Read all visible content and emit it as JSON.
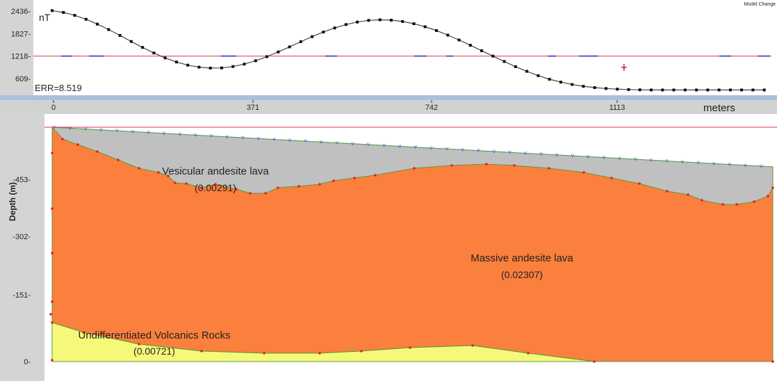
{
  "corner_label": "Model Change",
  "profile": {
    "unit": "nT",
    "error_label": "ERR=8.519",
    "yticks": [
      "2436-",
      "1827-",
      "1218-",
      "609-"
    ],
    "ytick_values": [
      2436,
      1827,
      1218,
      609
    ],
    "baseline_value": 1218
  },
  "distance_axis": {
    "unit": "meters",
    "ticks": [
      "0",
      "371",
      "742",
      "1113"
    ],
    "tick_values": [
      0,
      371,
      742,
      1113
    ]
  },
  "section": {
    "ylabel": "Depth (m)",
    "yticks": [
      "-453-",
      "-302-",
      "-151-",
      "0-"
    ],
    "ytick_values": [
      453,
      302,
      151,
      0
    ]
  },
  "layers": [
    {
      "name": "Vesicular andesite lava",
      "value": "(0.00291)",
      "color": "#c0c0c0"
    },
    {
      "name": "Massive andesite lava",
      "value": "(0.02307)",
      "color": "#fb7f3d"
    },
    {
      "name": "Undifferentiated  Volcanics Rocks",
      "value": "(0.00721)",
      "color": "#f5f97a"
    }
  ],
  "chart_data": {
    "type": "line",
    "title": "",
    "xlabel": "meters",
    "ylabel": "nT",
    "xlim": [
      0,
      1400
    ],
    "ylim": [
      300,
      2500
    ],
    "series": [
      {
        "x": [
          0,
          22,
          44,
          66,
          88,
          110,
          132,
          154,
          176,
          198,
          220,
          242,
          264,
          286,
          308,
          330,
          352,
          374,
          396,
          418,
          440,
          462,
          484,
          506,
          528,
          550,
          572,
          594,
          616,
          638,
          660,
          682,
          704,
          726,
          748,
          770,
          792,
          814,
          836,
          858,
          880,
          902,
          924,
          946,
          968,
          990,
          1012,
          1034,
          1056,
          1078,
          1100,
          1122,
          1144,
          1166,
          1188,
          1210,
          1232,
          1254,
          1276,
          1298,
          1320,
          1342,
          1364,
          1386
        ],
        "y": [
          2450,
          2401,
          2322,
          2216,
          2084,
          1936,
          1776,
          1612,
          1452,
          1302,
          1169,
          1058,
          973,
          917,
          893,
          898,
          935,
          1000,
          1091,
          1203,
          1330,
          1467,
          1607,
          1744,
          1870,
          1980,
          2072,
          2140,
          2185,
          2201,
          2192,
          2156,
          2095,
          2012,
          1908,
          1787,
          1654,
          1512,
          1365,
          1218,
          1072,
          932,
          804,
          689,
          591,
          512,
          449,
          400,
          364,
          339,
          323,
          311,
          304,
          300,
          300,
          300,
          300,
          300,
          300,
          300,
          300,
          300,
          300,
          300
        ]
      }
    ],
    "observed_marker_x": 1113,
    "layers_depth": {
      "xlim": [
        0,
        1400
      ],
      "ylim": [
        0,
        600
      ]
    }
  }
}
